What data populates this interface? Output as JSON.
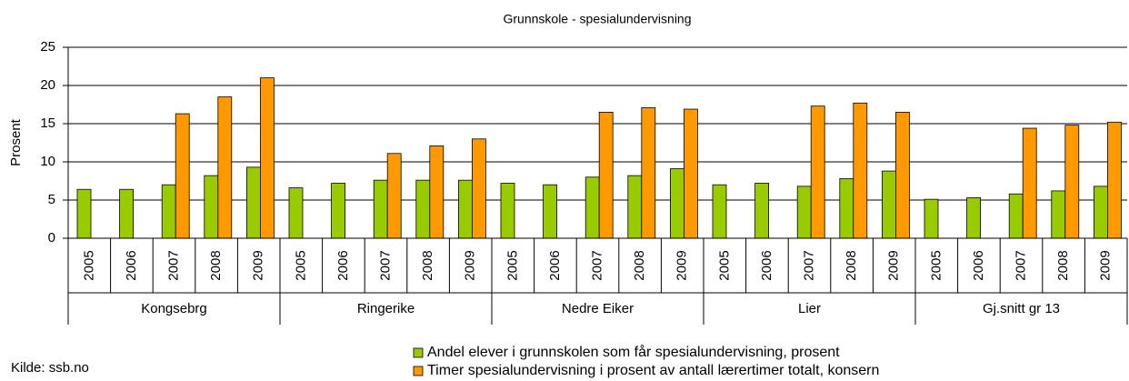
{
  "chart_data": {
    "type": "bar",
    "title": "Grunnskole - spesialundervisning",
    "y_label": "Prosent",
    "source": "Kilde: ssb.no",
    "groups": [
      "Kongsebrg",
      "Ringerike",
      "Nedre Eiker",
      "Lier",
      "Gj.snitt gr 13"
    ],
    "categories": [
      "2005",
      "2006",
      "2007",
      "2008",
      "2009",
      "2005",
      "2006",
      "2007",
      "2008",
      "2009",
      "2005",
      "2006",
      "2007",
      "2008",
      "2009",
      "2005",
      "2006",
      "2007",
      "2008",
      "2009",
      "2005",
      "2006",
      "2007",
      "2008",
      "2009"
    ],
    "series": [
      {
        "name": "Andel elever i grunnskolen som får spesialundervisning, prosent",
        "color": "#99cc00",
        "values": [
          6.4,
          6.4,
          7.0,
          8.2,
          9.3,
          6.6,
          7.2,
          7.6,
          7.6,
          7.6,
          7.2,
          7.0,
          8.0,
          8.2,
          9.1,
          7.0,
          7.2,
          6.8,
          7.8,
          8.8,
          5.1,
          5.3,
          5.8,
          6.2,
          6.8
        ]
      },
      {
        "name": "Timer spesialundervisning i prosent av antall lærertimer totalt, konsern",
        "color": "#ff9900",
        "values": [
          null,
          null,
          16.3,
          18.5,
          21.0,
          null,
          null,
          11.1,
          12.1,
          13.0,
          null,
          null,
          16.5,
          17.1,
          16.9,
          null,
          null,
          17.3,
          17.7,
          16.5,
          null,
          null,
          14.4,
          14.8,
          15.2
        ]
      }
    ],
    "ylim": [
      0,
      25
    ],
    "yticks": [
      0,
      5,
      10,
      15,
      20,
      25
    ],
    "grid": true
  }
}
